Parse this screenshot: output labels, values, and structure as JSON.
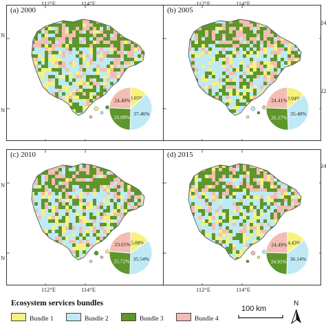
{
  "colors": {
    "bundle1": "#f7f27c",
    "bundle2": "#bfeaf5",
    "bundle3": "#5d962b",
    "bundle4": "#f4bdb3",
    "landmass": "#d7ecd5",
    "outline": "#555555"
  },
  "coordinates": {
    "top_longitudes": [
      "112°E",
      "114°E"
    ],
    "bottom_longitudes": [
      "112°E",
      "114°E"
    ],
    "left_latitudes": [
      "N",
      "N"
    ],
    "right_latitudes": [
      "24",
      "22",
      "24"
    ]
  },
  "panels": [
    {
      "label": "(a) 2000",
      "pie": [
        13.05,
        37.46,
        25.09,
        24.4
      ],
      "pie_labels": [
        "13.05%",
        "37.46%",
        "25.09%",
        "24.40%"
      ]
    },
    {
      "label": "(b) 2005",
      "pie": [
        13.94,
        35.48,
        26.17,
        24.41
      ],
      "pie_labels": [
        "13.94%",
        "35.48%",
        "26.17%",
        "24.41%"
      ]
    },
    {
      "label": "(c) 2010",
      "pie": [
        15.08,
        35.54,
        25.72,
        23.65
      ],
      "pie_labels": [
        "15.08%",
        "35.54%",
        "25.72%",
        "23.65%"
      ]
    },
    {
      "label": "(d) 2015",
      "pie": [
        14.43,
        36.14,
        24.91,
        24.49
      ],
      "pie_labels": [
        "14.43%",
        "36.14%",
        "24.91%",
        "24.49%"
      ]
    }
  ],
  "legend": {
    "title": "Ecosystem services bundles",
    "items": [
      {
        "label": "Bundle 1",
        "color": "#f7f27c"
      },
      {
        "label": "Bundle 2",
        "color": "#bfeaf5"
      },
      {
        "label": "Bundle 3",
        "color": "#5d962b"
      },
      {
        "label": "Bundle 4",
        "color": "#f4bdb3"
      }
    ]
  },
  "scale_bar": {
    "label": "100 km"
  },
  "north_arrow": {
    "label": "N"
  }
}
